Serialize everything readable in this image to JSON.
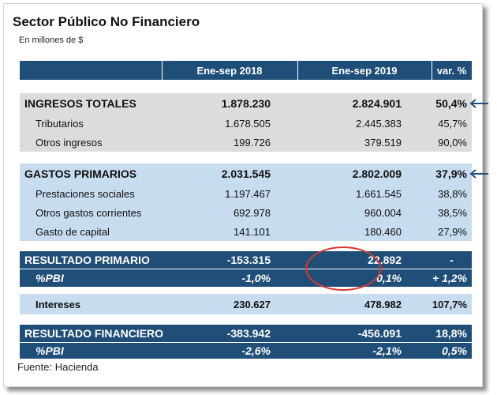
{
  "title": "Sector Público No Financiero",
  "subtitle": "En millones de $",
  "columns": [
    "Ene-sep 2018",
    "Ene-sep 2019",
    "var. %"
  ],
  "rows": {
    "ingresos": [
      "INGRESOS TOTALES",
      "1.878.230",
      "2.824.901",
      "50,4%"
    ],
    "tributarios": [
      "Tributarios",
      "1.678.505",
      "2.445.383",
      "45,7%"
    ],
    "otros_ingresos": [
      "Otros ingresos",
      "199.726",
      "379.519",
      "90,0%"
    ],
    "gastos": [
      "GASTOS PRIMARIOS",
      "2.031.545",
      "2.802.009",
      "37,9%"
    ],
    "prestaciones": [
      "Prestaciones sociales",
      "1.197.467",
      "1.661.545",
      "38,8%"
    ],
    "otros_gastos": [
      "Otros gastos corrientes",
      "692.978",
      "960.004",
      "38,5%"
    ],
    "capital": [
      "Gasto de capital",
      "141.101",
      "180.460",
      "27,9%"
    ],
    "resultado_primario": [
      "RESULTADO PRIMARIO",
      "-153.315",
      "22.892",
      "-"
    ],
    "pbi_primario": [
      "%PBI",
      "-1,0%",
      "0,1%",
      "+ 1,2%"
    ],
    "intereses": [
      "Intereses",
      "230.627",
      "478.982",
      "107,7%"
    ],
    "resultado_financiero": [
      "RESULTADO FINANCIERO",
      "-383.942",
      "-456.091",
      "18,8%"
    ],
    "pbi_financiero": [
      "%PBI",
      "-2,6%",
      "-2,1%",
      "0,5%"
    ]
  },
  "source": "Fuente: Hacienda",
  "colors": {
    "header_blue": "#1f4e79",
    "gray_band": "#dcdcdc",
    "light_blue_band": "#c7dcef",
    "highlight_circle": "#d9382e",
    "arrow": "#1f4e79"
  },
  "icons": [
    "arrow-left-icon",
    "highlight-circle"
  ]
}
